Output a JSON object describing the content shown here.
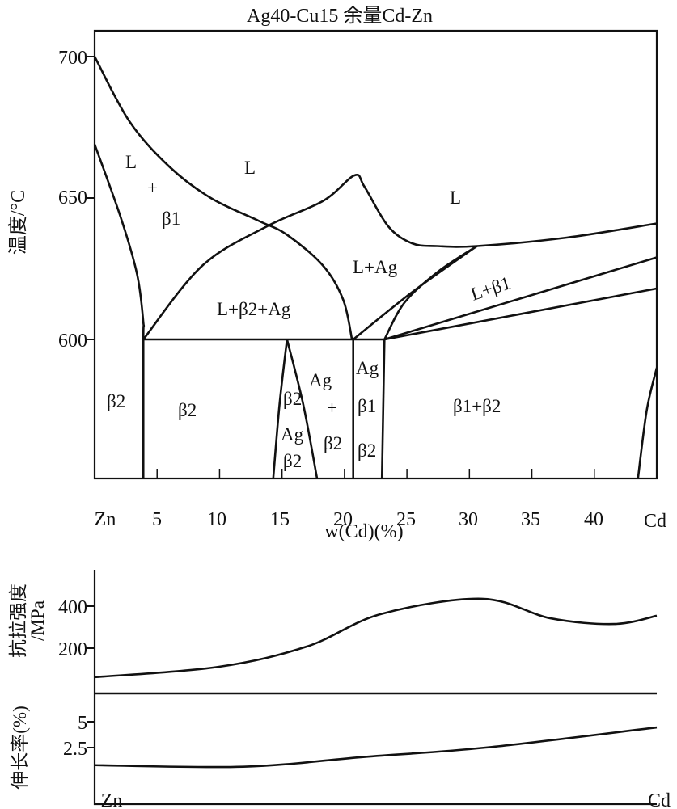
{
  "title": "Ag40-Cu15      余量Cd-Zn",
  "chart_data": [
    {
      "type": "line",
      "subtype": "phase-diagram",
      "title": "Ag40-Cu15      余量Cd-Zn",
      "xlabel": "w(Cd)(%)",
      "ylabel": "温度/°C",
      "xlim": [
        0,
        45
      ],
      "ylim": [
        551,
        710
      ],
      "x_ticks": [
        "Zn",
        "5",
        "10",
        "15",
        "20",
        "25",
        "30",
        "35",
        "40",
        "Cd"
      ],
      "y_ticks": [
        "700",
        "650",
        "600"
      ],
      "y_tick_values": [
        700,
        650,
        600
      ],
      "x_tick_values": [
        0,
        5,
        10,
        15,
        20,
        25,
        30,
        35,
        40,
        45
      ],
      "lines": [
        {
          "name": "liquidus-left",
          "points": [
            [
              0,
              700
            ],
            [
              2.8,
              677
            ],
            [
              6.0,
              661
            ],
            [
              9.3,
              650
            ],
            [
              13.1,
              642
            ],
            [
              15.4,
              637
            ],
            [
              18.3,
              626
            ],
            [
              19.9,
              614
            ],
            [
              20.6,
              600
            ]
          ]
        },
        {
          "name": "solidus-beta1",
          "points": [
            [
              0,
              669
            ],
            [
              2.1,
              643
            ],
            [
              3.4,
              623
            ],
            [
              3.9,
              606
            ],
            [
              3.9,
              600
            ],
            [
              3.9,
              551
            ]
          ]
        },
        {
          "name": "liquidus-right",
          "points": [
            [
              3.9,
              600
            ],
            [
              8.6,
              626
            ],
            [
              13.8,
              640
            ],
            [
              18.3,
              649
            ],
            [
              20.8,
              658
            ],
            [
              21.6,
              654
            ],
            [
              23.5,
              640
            ],
            [
              25.4,
              634
            ],
            [
              27.4,
              633
            ],
            [
              30.6,
              633
            ],
            [
              37.8,
              636
            ],
            [
              45,
              641
            ]
          ]
        },
        {
          "name": "ag-boundary-1",
          "points": [
            [
              20.7,
              600
            ],
            [
              25.5,
              617
            ],
            [
              30.6,
              633
            ]
          ]
        },
        {
          "name": "ag-boundary-2",
          "points": [
            [
              23.2,
              600
            ],
            [
              24.8,
              613
            ],
            [
              27.5,
              624
            ],
            [
              30.6,
              633
            ]
          ]
        },
        {
          "name": "beta1-boundary-upper",
          "points": [
            [
              23.2,
              600
            ],
            [
              45,
              629
            ]
          ]
        },
        {
          "name": "beta1-boundary-lower",
          "points": [
            [
              23.2,
              600
            ],
            [
              45,
              618
            ]
          ]
        },
        {
          "name": "eutectic-600",
          "points": [
            [
              3.9,
              600
            ],
            [
              23.2,
              600
            ]
          ]
        },
        {
          "name": "lens-left",
          "points": [
            [
              14.3,
              551
            ],
            [
              14.8,
              577
            ],
            [
              15.4,
              600
            ]
          ]
        },
        {
          "name": "lens-right",
          "points": [
            [
              15.4,
              600
            ],
            [
              16.7,
              577
            ],
            [
              17.8,
              551
            ]
          ]
        },
        {
          "name": "vertical-21",
          "points": [
            [
              20.7,
              600
            ],
            [
              20.7,
              551
            ]
          ]
        },
        {
          "name": "vertical-23",
          "points": [
            [
              23.2,
              600
            ],
            [
              23.0,
              551
            ]
          ]
        },
        {
          "name": "right-solvus",
          "points": [
            [
              43.5,
              551
            ],
            [
              44.2,
              575
            ],
            [
              45,
              590
            ]
          ]
        }
      ],
      "region_labels": [
        "L",
        "+",
        "β1",
        "L",
        "L",
        "L+Ag",
        "L+β1",
        "L+β2+Ag",
        "β2",
        "β2",
        "β2",
        "Ag",
        "β2",
        "Ag",
        "+",
        "β2",
        "Ag",
        "β1",
        "β2",
        "β1+β2"
      ]
    },
    {
      "type": "line",
      "ylabel": "抗拉强度/MPa",
      "ylabel_lines": [
        "抗拉强度",
        "/MPa"
      ],
      "y_ticks": [
        "400",
        "200"
      ],
      "y_tick_values": [
        400,
        200
      ],
      "xlim": [
        0,
        45
      ],
      "series": [
        {
          "name": "tensile-strength",
          "x": [
            0,
            9.9,
            17,
            22.9,
            31,
            36.5,
            41.6,
            45
          ],
          "y": [
            62,
            111,
            208,
            362,
            435,
            342,
            315,
            354
          ]
        }
      ]
    },
    {
      "type": "line",
      "ylabel": "伸长率(%)",
      "y_ticks": [
        "5",
        "2.5"
      ],
      "y_tick_values": [
        5,
        2.5
      ],
      "x_ticks": [
        "Zn",
        "Cd"
      ],
      "xlim": [
        0,
        45
      ],
      "series": [
        {
          "name": "elongation",
          "x": [
            0,
            11.9,
            21.6,
            31.3,
            45
          ],
          "y": [
            0.8,
            0.65,
            1.6,
            2.5,
            4.45
          ]
        }
      ]
    }
  ]
}
